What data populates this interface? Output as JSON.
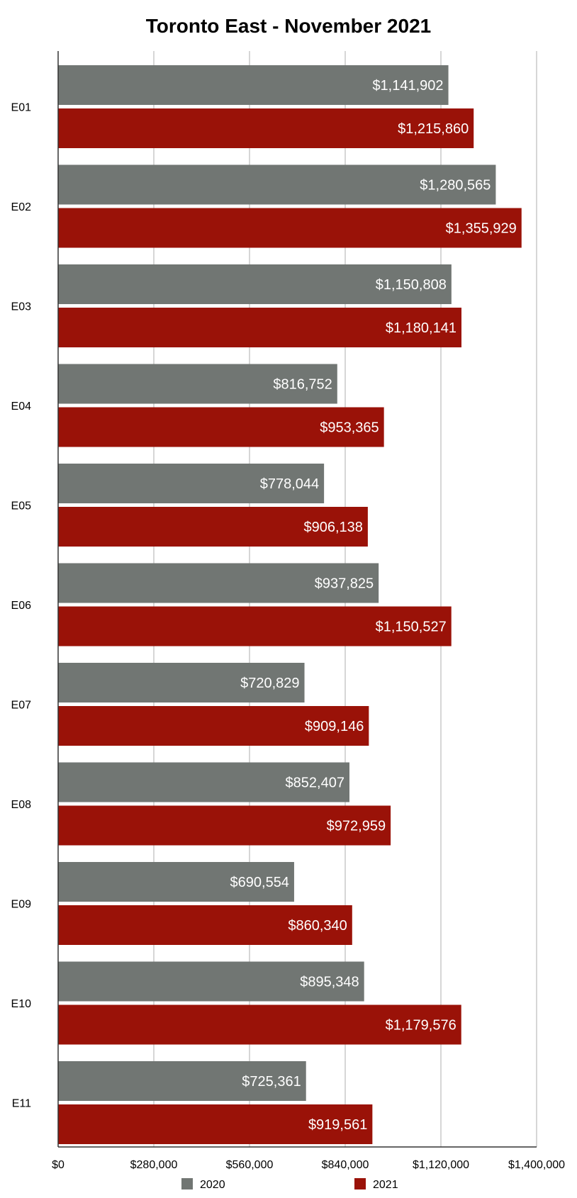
{
  "chart_data": {
    "type": "bar",
    "orientation": "horizontal",
    "title": "Toronto East - November 2021",
    "xlabel": "",
    "ylabel": "",
    "categories": [
      "E01",
      "E02",
      "E03",
      "E04",
      "E05",
      "E06",
      "E07",
      "E08",
      "E09",
      "E10",
      "E11"
    ],
    "series": [
      {
        "name": "2020",
        "color": "#717673",
        "values": [
          1141902,
          1280565,
          1150808,
          816752,
          778044,
          937825,
          720829,
          852407,
          690554,
          895348,
          725361
        ],
        "labels": [
          "$1,141,902",
          "$1,280,565",
          "$1,150,808",
          "$816,752",
          "$778,044",
          "$937,825",
          "$720,829",
          "$852,407",
          "$690,554",
          "$895,348",
          "$725,361"
        ]
      },
      {
        "name": "2021",
        "color": "#9a1208",
        "values": [
          1215860,
          1355929,
          1180141,
          953365,
          906138,
          1150527,
          909146,
          972959,
          860340,
          1179576,
          919561
        ],
        "labels": [
          "$1,215,860",
          "$1,355,929",
          "$1,180,141",
          "$953,365",
          "$906,138",
          "$1,150,527",
          "$909,146",
          "$972,959",
          "$860,340",
          "$1,179,576",
          "$919,561"
        ]
      }
    ],
    "xlim": [
      0,
      1400000
    ],
    "xticks": [
      0,
      280000,
      560000,
      840000,
      1120000,
      1400000
    ],
    "xtick_labels": [
      "$0",
      "$280,000",
      "$560,000",
      "$840,000",
      "$1,120,000",
      "$1,400,000"
    ],
    "grid": true,
    "gridline_color": "#c8c8c8",
    "axis_color": "#333333",
    "legend": "bottom"
  }
}
